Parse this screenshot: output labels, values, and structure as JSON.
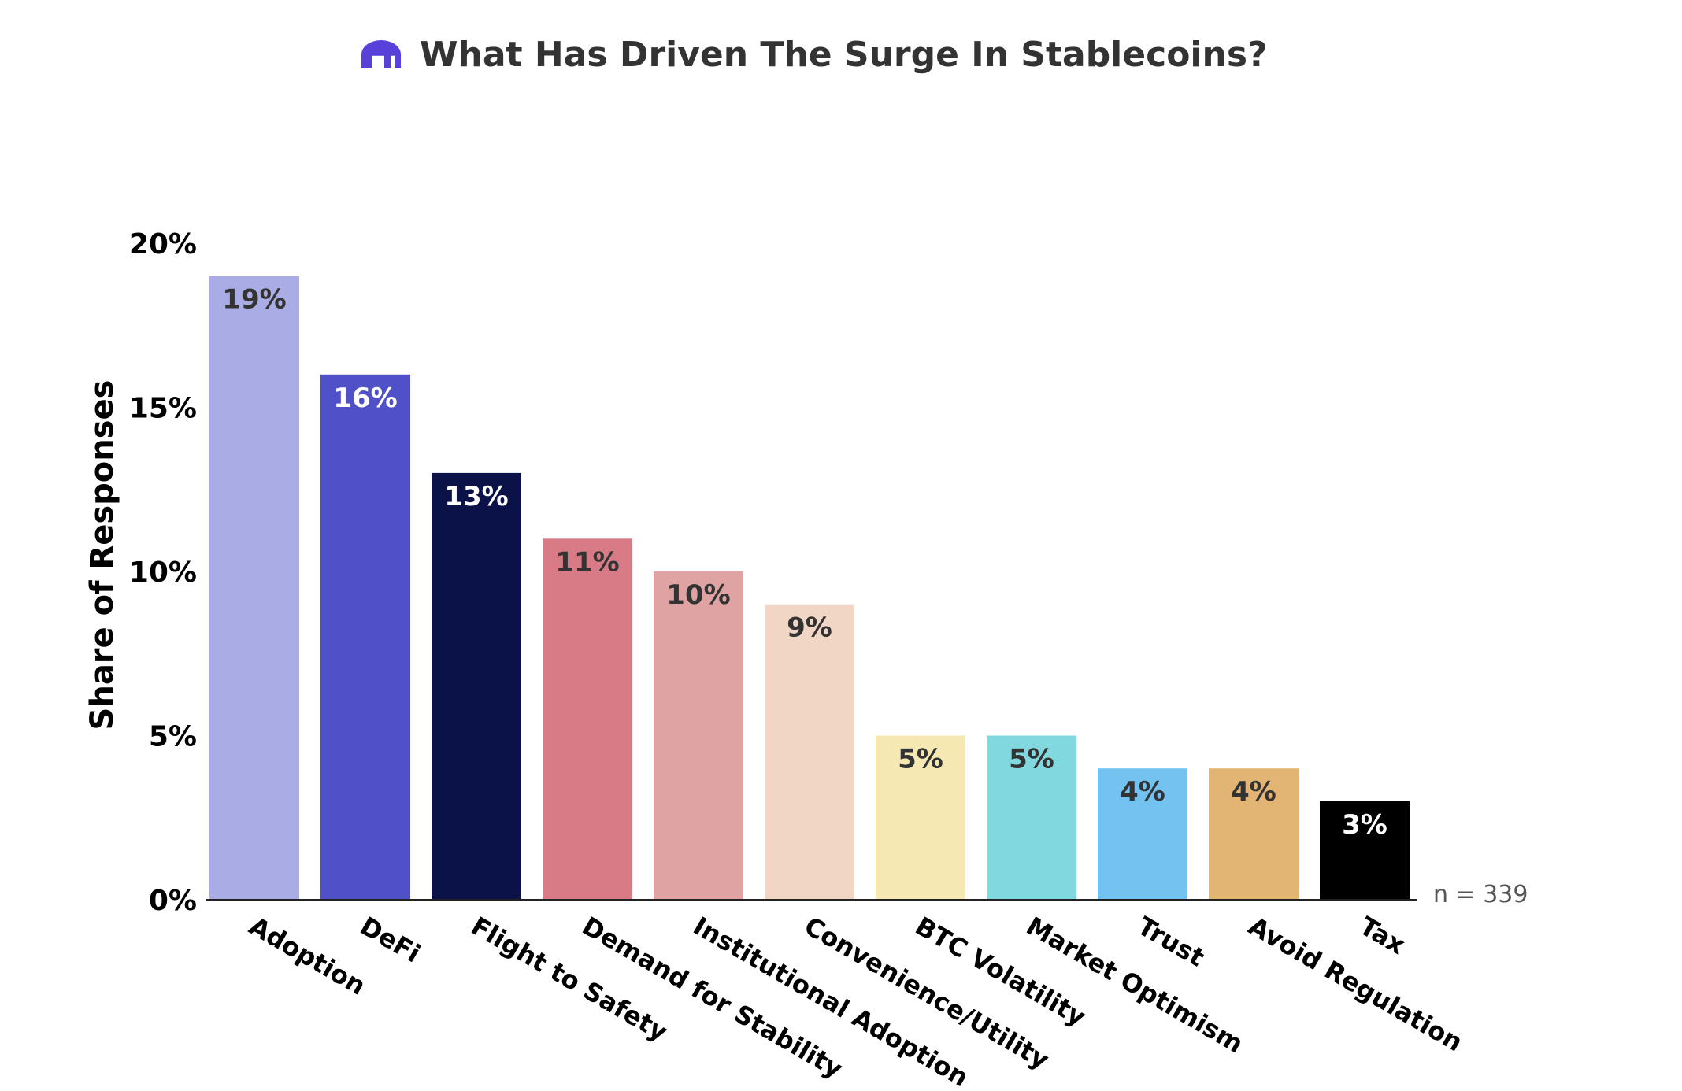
{
  "chart_data": {
    "type": "bar",
    "title": "What Has Driven The Surge In Stablecoins?",
    "ylabel": "Share of Responses",
    "xlabel": "",
    "ylim": [
      0,
      20
    ],
    "yticks": [
      0,
      5,
      10,
      15,
      20
    ],
    "ytick_labels": [
      "0%",
      "5%",
      "10%",
      "15%",
      "20%"
    ],
    "categories": [
      "Adoption",
      "DeFi",
      "Flight to Safety",
      "Demand for Stability",
      "Institutional Adoption",
      "Convenience/Utility",
      "BTC Volatility",
      "Market Optimism",
      "Trust",
      "Avoid Regulation",
      "Tax"
    ],
    "values": [
      19,
      16,
      13,
      11,
      10,
      9,
      5,
      5,
      4,
      4,
      3
    ],
    "value_labels": [
      "19%",
      "16%",
      "13%",
      "11%",
      "10%",
      "9%",
      "5%",
      "5%",
      "4%",
      "4%",
      "3%"
    ],
    "bar_colors": [
      "#aaade5",
      "#5050c8",
      "#0b1248",
      "#d97b86",
      "#dfa3a3",
      "#f1d6c5",
      "#f5e8b3",
      "#82d8df",
      "#73c2ef",
      "#e2b574",
      "#000000"
    ],
    "label_colors": [
      "#333333",
      "#ffffff",
      "#ffffff",
      "#333333",
      "#333333",
      "#333333",
      "#333333",
      "#333333",
      "#333333",
      "#333333",
      "#ffffff"
    ],
    "annotation": "n = 339",
    "grid": false,
    "legend": "none"
  },
  "logo": {
    "name": "kraken-logo-icon",
    "color": "#5741d9"
  },
  "colors": {
    "text": "#333333",
    "axis": "#222222"
  }
}
